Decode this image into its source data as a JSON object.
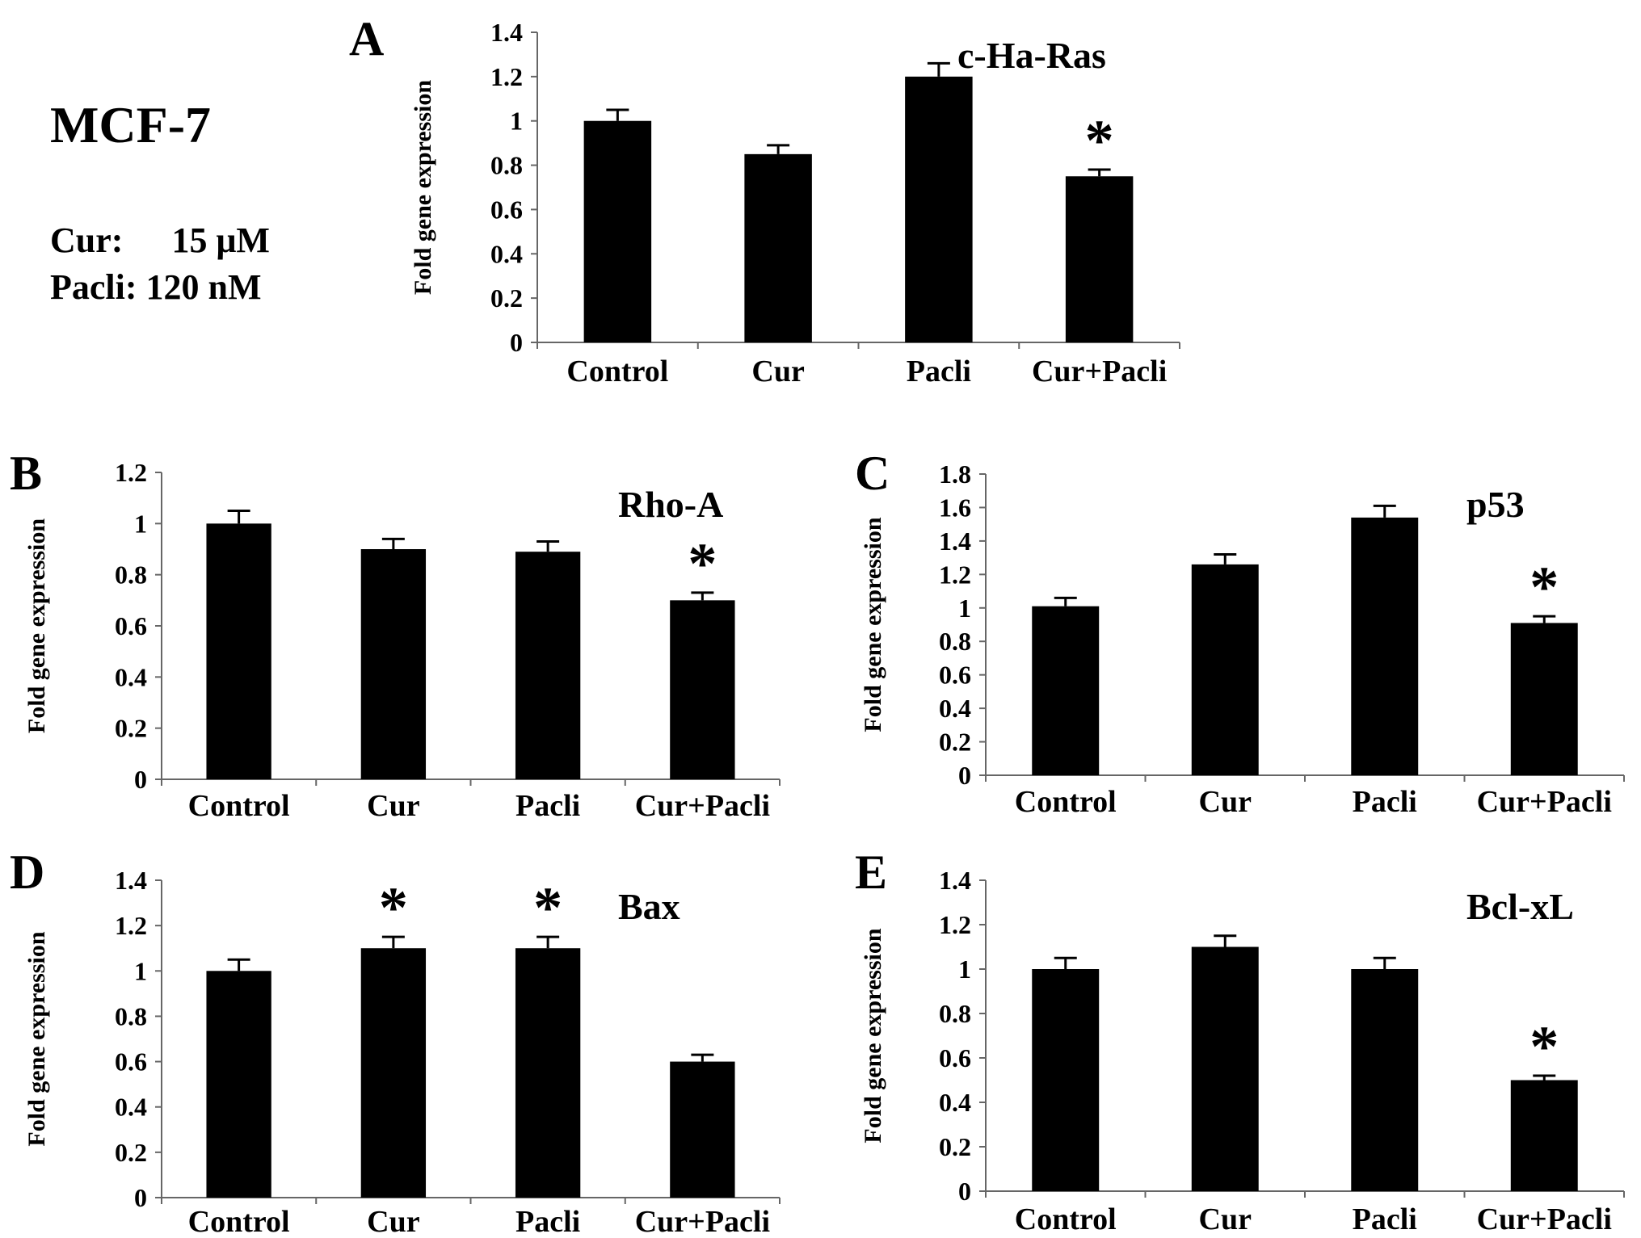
{
  "figure": {
    "cell_line": "MCF-7",
    "conditions": [
      {
        "label": "Cur:",
        "value": "15 μM"
      },
      {
        "label": "Pacli:",
        "value": "120 nM"
      }
    ]
  },
  "chart_data": [
    {
      "panel": "A",
      "type": "bar",
      "title": "c-Ha-Ras",
      "xlabel": "",
      "ylabel": "Fold gene expression",
      "categories": [
        "Control",
        "Cur",
        "Pacli",
        "Cur+Pacli"
      ],
      "values": [
        1.0,
        0.85,
        1.2,
        0.75
      ],
      "errors": [
        0.05,
        0.04,
        0.06,
        0.03
      ],
      "significant": [
        false,
        false,
        false,
        true
      ],
      "ylim": [
        0,
        1.4
      ],
      "yticks": [
        0,
        0.2,
        0.4,
        0.6,
        0.8,
        1,
        1.2,
        1.4
      ],
      "ytick_labels": [
        "0",
        "0.2",
        "0.4",
        "0.6",
        "0.8",
        "1",
        "1.2",
        "1.4"
      ],
      "significance_marker": "*"
    },
    {
      "panel": "B",
      "type": "bar",
      "title": "Rho-A",
      "xlabel": "",
      "ylabel": "Fold gene expression",
      "categories": [
        "Control",
        "Cur",
        "Pacli",
        "Cur+Pacli"
      ],
      "values": [
        1.0,
        0.9,
        0.89,
        0.7
      ],
      "errors": [
        0.05,
        0.04,
        0.04,
        0.03
      ],
      "significant": [
        false,
        false,
        false,
        true
      ],
      "ylim": [
        0,
        1.2
      ],
      "yticks": [
        0,
        0.2,
        0.4,
        0.6,
        0.8,
        1,
        1.2
      ],
      "ytick_labels": [
        "0",
        "0.2",
        "0.4",
        "0.6",
        "0.8",
        "1",
        "1.2"
      ],
      "significance_marker": "*"
    },
    {
      "panel": "C",
      "type": "bar",
      "title": "p53",
      "xlabel": "",
      "ylabel": "Fold gene expression",
      "categories": [
        "Control",
        "Cur",
        "Pacli",
        "Cur+Pacli"
      ],
      "values": [
        1.01,
        1.26,
        1.54,
        0.91
      ],
      "errors": [
        0.05,
        0.06,
        0.07,
        0.04
      ],
      "significant": [
        false,
        false,
        false,
        true
      ],
      "ylim": [
        0,
        1.8
      ],
      "yticks": [
        0,
        0.2,
        0.4,
        0.6,
        0.8,
        1,
        1.2,
        1.4,
        1.6,
        1.8
      ],
      "ytick_labels": [
        "0",
        "0.2",
        "0.4",
        "0.6",
        "0.8",
        "1",
        "1.2",
        "1.4",
        "1.6",
        "1.8"
      ],
      "ytick_label_note": "labels printed as on the original axis",
      "significance_marker": "*"
    },
    {
      "panel": "D",
      "type": "bar",
      "title": "Bax",
      "xlabel": "",
      "ylabel": "Fold gene expression",
      "categories": [
        "Control",
        "Cur",
        "Pacli",
        "Cur+Pacli"
      ],
      "values": [
        1.0,
        1.1,
        1.1,
        0.6
      ],
      "errors": [
        0.05,
        0.05,
        0.05,
        0.03
      ],
      "significant": [
        false,
        true,
        true,
        false
      ],
      "ylim": [
        0,
        1.4
      ],
      "yticks": [
        0,
        0.2,
        0.4,
        0.6,
        0.8,
        1,
        1.2,
        1.4
      ],
      "ytick_labels": [
        "0",
        "0.2",
        "0.4",
        "0.6",
        "0.8",
        "1",
        "1.2",
        "1.4"
      ],
      "significance_marker": "*"
    },
    {
      "panel": "E",
      "type": "bar",
      "title": "Bcl-xL",
      "xlabel": "",
      "ylabel": "Fold gene expression",
      "categories": [
        "Control",
        "Cur",
        "Pacli",
        "Cur+Pacli"
      ],
      "values": [
        1.0,
        1.1,
        1.0,
        0.5
      ],
      "errors": [
        0.05,
        0.05,
        0.05,
        0.02
      ],
      "significant": [
        false,
        false,
        false,
        true
      ],
      "ylim": [
        0,
        1.4
      ],
      "yticks": [
        0,
        0.2,
        0.4,
        0.6,
        0.8,
        1,
        1.2,
        1.4
      ],
      "ytick_labels": [
        "0",
        "0.2",
        "0.4",
        "0.6",
        "0.8",
        "1",
        "1.2",
        "1.4"
      ],
      "significance_marker": "*"
    }
  ]
}
